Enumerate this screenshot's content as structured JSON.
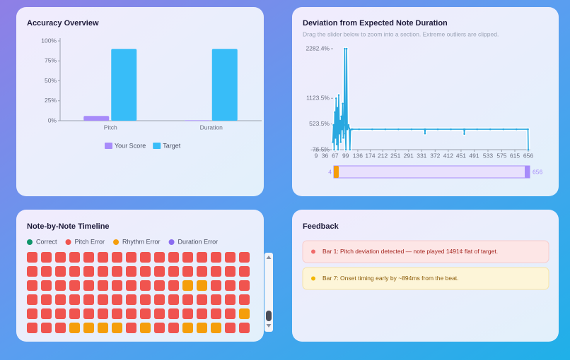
{
  "chart_data": [
    {
      "type": "bar",
      "title": "Accuracy Overview",
      "categories": [
        "Pitch",
        "Duration"
      ],
      "series": [
        {
          "name": "Your Score",
          "color": "#a78bfa",
          "values": [
            6,
            0.5
          ]
        },
        {
          "name": "Target",
          "color": "#38bdf8",
          "values": [
            90,
            90
          ]
        }
      ],
      "ylim": [
        0,
        100
      ],
      "yticks": [
        {
          "value": 0,
          "label": "0%"
        },
        {
          "value": 25,
          "label": "25%"
        },
        {
          "value": 50,
          "label": "50%"
        },
        {
          "value": 75,
          "label": "75%"
        },
        {
          "value": 100,
          "label": "100%"
        }
      ]
    },
    {
      "type": "line",
      "title": "Deviation from Expected Note Duration",
      "subtitle": "Drag the slider below to zoom into a section. Extreme outliers are clipped.",
      "color": "#29a8e0",
      "x": [
        60,
        62,
        64,
        66,
        68,
        70,
        72,
        74,
        76,
        78,
        80,
        82,
        84,
        86,
        88,
        90,
        92,
        94,
        96,
        98,
        100,
        102,
        104,
        106,
        108,
        110,
        112,
        114,
        116,
        120,
        140,
        180,
        220,
        260,
        300,
        340,
        341,
        342,
        380,
        420,
        460,
        461,
        462,
        500,
        540,
        580,
        620,
        655,
        656
      ],
      "values": [
        100,
        500,
        -76.5,
        800,
        200,
        1123.5,
        50,
        900,
        -76.5,
        1200,
        300,
        600,
        100,
        700,
        400,
        1000,
        200,
        500,
        2282.4,
        300,
        -76.5,
        2282.4,
        400,
        450,
        500,
        420,
        -76.5,
        380,
        400,
        400,
        400,
        400,
        400,
        400,
        400,
        400,
        300,
        400,
        400,
        400,
        400,
        290,
        400,
        400,
        400,
        400,
        400,
        400,
        -76.5
      ],
      "xlim": [
        4,
        656
      ],
      "xticks": [
        9,
        36,
        67,
        99,
        136,
        174,
        212,
        251,
        291,
        331,
        372,
        412,
        451,
        491,
        533,
        575,
        615,
        656
      ],
      "ylim": [
        -76.5,
        2282.4
      ],
      "yticks": [
        {
          "value": -76.5,
          "label": "-76.5%"
        },
        {
          "value": 523.5,
          "label": "523.5%"
        },
        {
          "value": 1123.5,
          "label": "1123.5%"
        },
        {
          "value": 2282.4,
          "label": "2282.4%"
        }
      ],
      "slider": {
        "min": 4,
        "max": 656
      }
    }
  ],
  "timeline": {
    "title": "Note-by-Note Timeline",
    "legend": [
      {
        "label": "Correct",
        "color": "#10956b"
      },
      {
        "label": "Pitch Error",
        "color": "#f0544f"
      },
      {
        "label": "Rhythm Error",
        "color": "#f59e0b"
      },
      {
        "label": "Duration Error",
        "color": "#8b6cf0"
      }
    ],
    "notes": [
      1,
      1,
      1,
      1,
      1,
      1,
      1,
      1,
      1,
      1,
      1,
      1,
      1,
      1,
      1,
      1,
      1,
      1,
      1,
      1,
      1,
      1,
      1,
      1,
      1,
      1,
      1,
      1,
      1,
      1,
      1,
      1,
      1,
      1,
      1,
      1,
      1,
      1,
      1,
      1,
      1,
      1,
      1,
      2,
      2,
      1,
      1,
      1,
      1,
      1,
      1,
      1,
      1,
      1,
      1,
      1,
      1,
      1,
      1,
      1,
      1,
      1,
      1,
      1,
      1,
      1,
      1,
      1,
      1,
      1,
      1,
      1,
      1,
      1,
      1,
      1,
      1,
      1,
      1,
      2,
      1,
      1,
      1,
      2,
      2,
      2,
      2,
      1,
      2,
      1,
      1,
      2,
      2,
      2,
      1,
      1
    ]
  },
  "feedback": {
    "title": "Feedback",
    "items": [
      {
        "text": "Bar 1: Pitch deviation detected — note played 1491¢ flat of target.",
        "color": "#f06b6b"
      },
      {
        "text": "Bar 7: Onset timing early by ~894ms from the beat.",
        "color": "#f2b705"
      }
    ]
  }
}
